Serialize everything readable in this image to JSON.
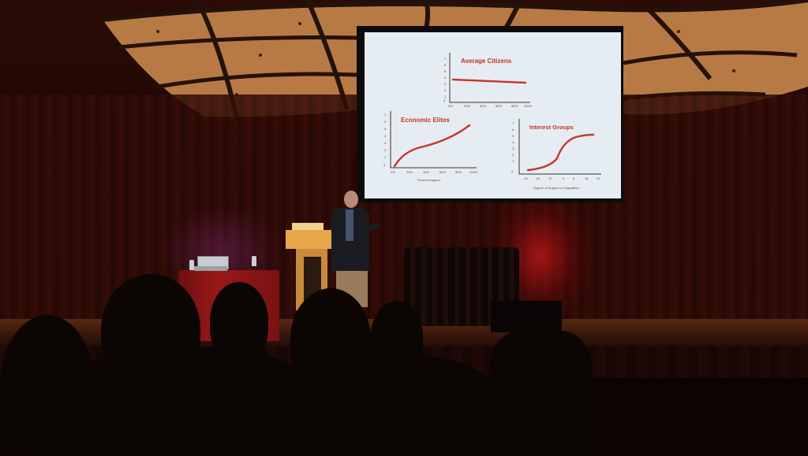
{
  "slide": {
    "panels": [
      {
        "title": "Average Citizens",
        "y_ticks": [
          ".7",
          ".6",
          ".5",
          ".4",
          ".3",
          ".2",
          ".1",
          "0"
        ],
        "x_ticks": [
          "0%",
          "20%",
          "40%",
          "60%",
          "80%",
          "100%"
        ],
        "x_label": ""
      },
      {
        "title": "Economic Elites",
        "y_ticks": [
          ".7",
          ".6",
          ".5",
          ".4",
          ".3",
          ".2",
          ".1",
          "0"
        ],
        "x_ticks": [
          "0%",
          "20%",
          "40%",
          "60%",
          "80%",
          "100%"
        ],
        "x_label": "Percent Support"
      },
      {
        "title": "Interest Groups",
        "y_ticks": [
          ".7",
          ".6",
          ".5",
          ".4",
          ".3",
          ".2",
          ".1",
          "0"
        ],
        "x_ticks": [
          "-24",
          "-16",
          "-8",
          "0",
          "8",
          "16",
          "24"
        ],
        "x_label": "Degree of Support or Opposition"
      }
    ]
  },
  "colors": {
    "curve": "#c8362a",
    "screen_background": "#e6edf2",
    "stage_light_red": "#c81919",
    "table_cloth": "#9a1818"
  }
}
